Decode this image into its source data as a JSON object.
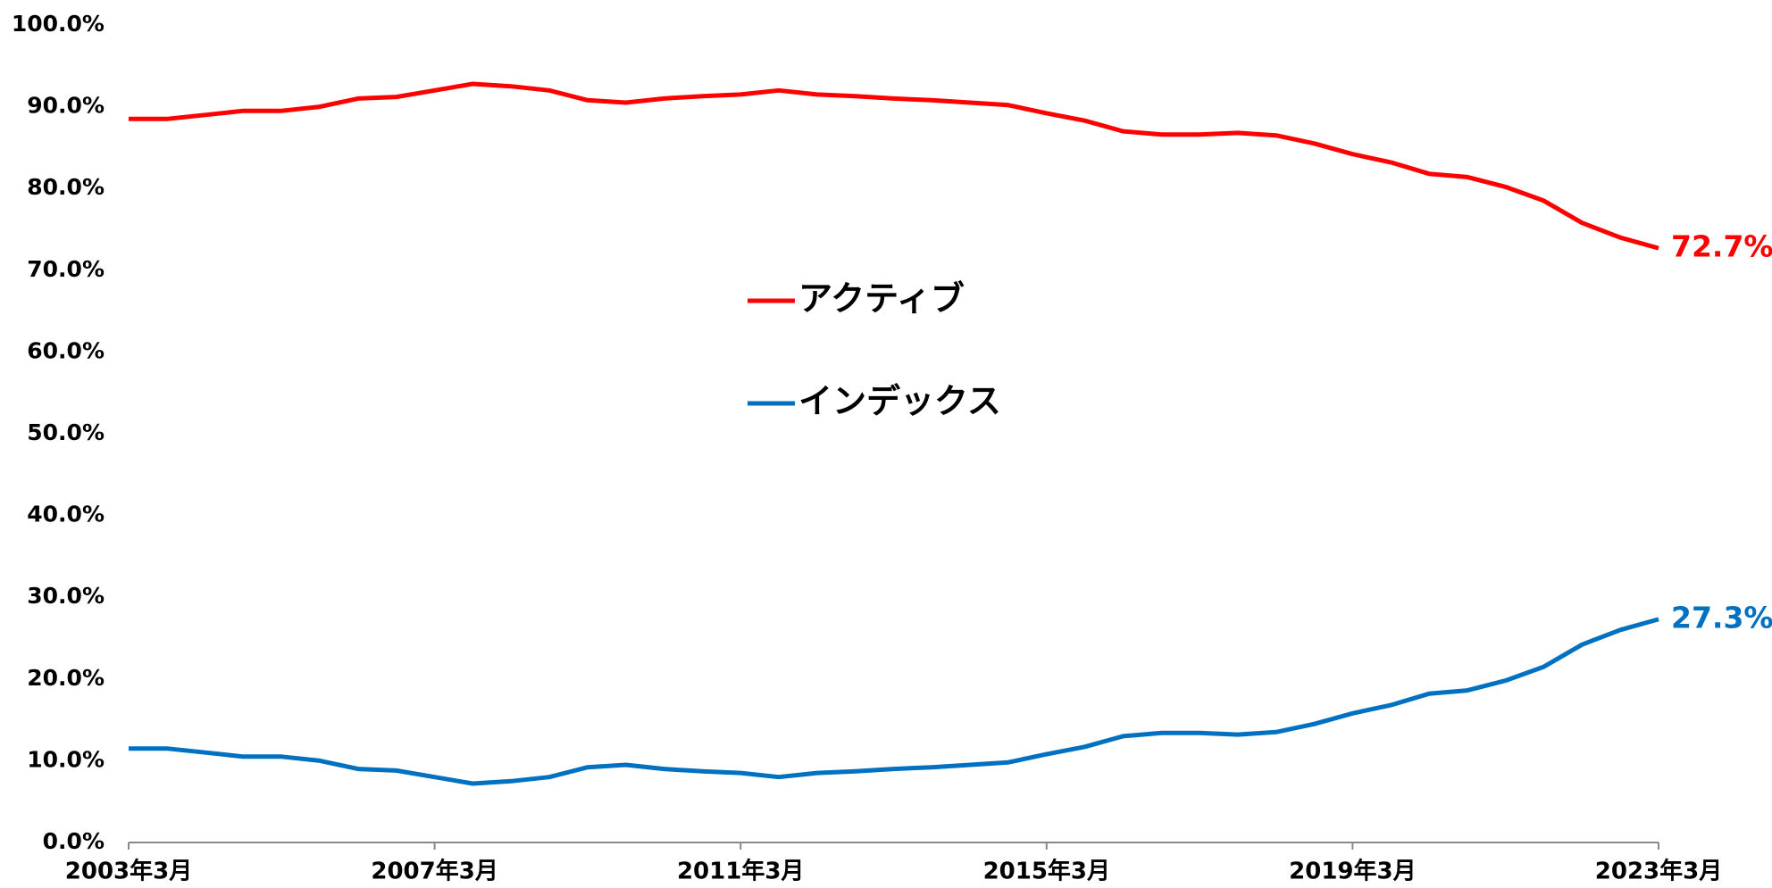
{
  "chart_data": {
    "type": "line",
    "categories": [
      "2003年3月",
      null,
      null,
      null,
      null,
      null,
      null,
      null,
      "2007年3月",
      null,
      null,
      null,
      null,
      null,
      null,
      null,
      "2011年3月",
      null,
      null,
      null,
      null,
      null,
      null,
      null,
      "2015年3月",
      null,
      null,
      null,
      null,
      null,
      null,
      null,
      "2019年3月",
      null,
      null,
      null,
      null,
      null,
      null,
      null,
      "2023年3月"
    ],
    "series": [
      {
        "name": "アクティブ",
        "color": "#ff0000",
        "values": [
          88.5,
          88.5,
          89.0,
          89.5,
          89.5,
          90.0,
          91.0,
          91.2,
          92.0,
          92.8,
          92.5,
          92.0,
          90.8,
          90.5,
          91.0,
          91.3,
          91.5,
          92.0,
          91.5,
          91.3,
          91.0,
          90.8,
          90.5,
          90.2,
          89.2,
          88.3,
          87.0,
          86.6,
          86.6,
          86.8,
          86.5,
          85.5,
          84.2,
          83.2,
          81.8,
          81.4,
          80.2,
          78.5,
          75.8,
          74.0,
          72.7
        ],
        "value_labels": [
          null,
          null,
          null,
          null,
          null,
          null,
          null,
          null,
          null,
          null,
          null,
          null,
          null,
          null,
          null,
          null,
          null,
          null,
          null,
          null,
          null,
          null,
          null,
          null,
          null,
          null,
          null,
          null,
          null,
          null,
          null,
          null,
          null,
          null,
          null,
          null,
          null,
          null,
          null,
          null,
          "72.7%"
        ]
      },
      {
        "name": "インデックス",
        "color": "#0070c0",
        "values": [
          11.5,
          11.5,
          11.0,
          10.5,
          10.5,
          10.0,
          9.0,
          8.8,
          8.0,
          7.2,
          7.5,
          8.0,
          9.2,
          9.5,
          9.0,
          8.7,
          8.5,
          8.0,
          8.5,
          8.7,
          9.0,
          9.2,
          9.5,
          9.8,
          10.8,
          11.7,
          13.0,
          13.4,
          13.4,
          13.2,
          13.5,
          14.5,
          15.8,
          16.8,
          18.2,
          18.6,
          19.8,
          21.5,
          24.2,
          26.0,
          27.3
        ],
        "value_labels": [
          null,
          null,
          null,
          null,
          null,
          null,
          null,
          null,
          null,
          null,
          null,
          null,
          null,
          null,
          null,
          null,
          null,
          null,
          null,
          null,
          null,
          null,
          null,
          null,
          null,
          null,
          null,
          null,
          null,
          null,
          null,
          null,
          null,
          null,
          null,
          null,
          null,
          null,
          null,
          null,
          "27.3%"
        ]
      }
    ],
    "ylim": [
      0,
      100
    ],
    "yticks": [
      {
        "value": 0,
        "label": "0.0%"
      },
      {
        "value": 10,
        "label": "10.0%"
      },
      {
        "value": 20,
        "label": "20.0%"
      },
      {
        "value": 30,
        "label": "30.0%"
      },
      {
        "value": 40,
        "label": "40.0%"
      },
      {
        "value": 50,
        "label": "50.0%"
      },
      {
        "value": 60,
        "label": "60.0%"
      },
      {
        "value": 70,
        "label": "70.0%"
      },
      {
        "value": 80,
        "label": "80.0%"
      },
      {
        "value": 90,
        "label": "90.0%"
      },
      {
        "value": 100,
        "label": "100.0%"
      }
    ],
    "grid": false
  }
}
